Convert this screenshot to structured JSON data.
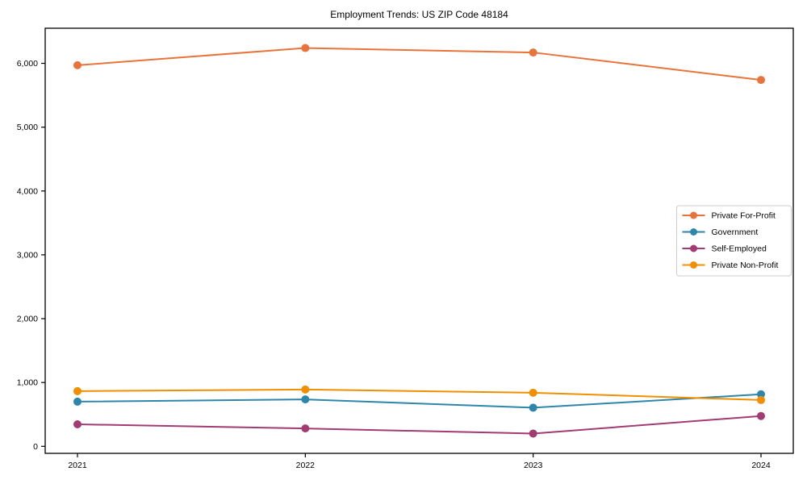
{
  "chart_data": {
    "type": "line",
    "title": "Employment Trends: US ZIP Code 48184",
    "xlabel": "",
    "ylabel": "",
    "x": [
      2021,
      2022,
      2023,
      2024
    ],
    "x_tick_labels": [
      "2021",
      "2022",
      "2023",
      "2024"
    ],
    "y_ticks": [
      0,
      1000,
      2000,
      3000,
      4000,
      5000,
      6000
    ],
    "y_tick_labels": [
      "0",
      "1,000",
      "2,000",
      "3,000",
      "4,000",
      "5,000",
      "6,000"
    ],
    "ylim": [
      -110,
      6550
    ],
    "grid": false,
    "legend_position": "center-right",
    "series": [
      {
        "name": "Private For-Profit",
        "color": "#E8743B",
        "values": [
          5970,
          6240,
          6170,
          5740
        ]
      },
      {
        "name": "Government",
        "color": "#2E86AB",
        "values": [
          700,
          735,
          605,
          815
        ]
      },
      {
        "name": "Self-Employed",
        "color": "#A23B72",
        "values": [
          345,
          280,
          200,
          475
        ]
      },
      {
        "name": "Private Non-Profit",
        "color": "#F18F01",
        "values": [
          865,
          890,
          840,
          725
        ]
      }
    ]
  },
  "colors": {
    "axis": "#000000",
    "legend_border": "#cccccc",
    "background": "#ffffff"
  }
}
